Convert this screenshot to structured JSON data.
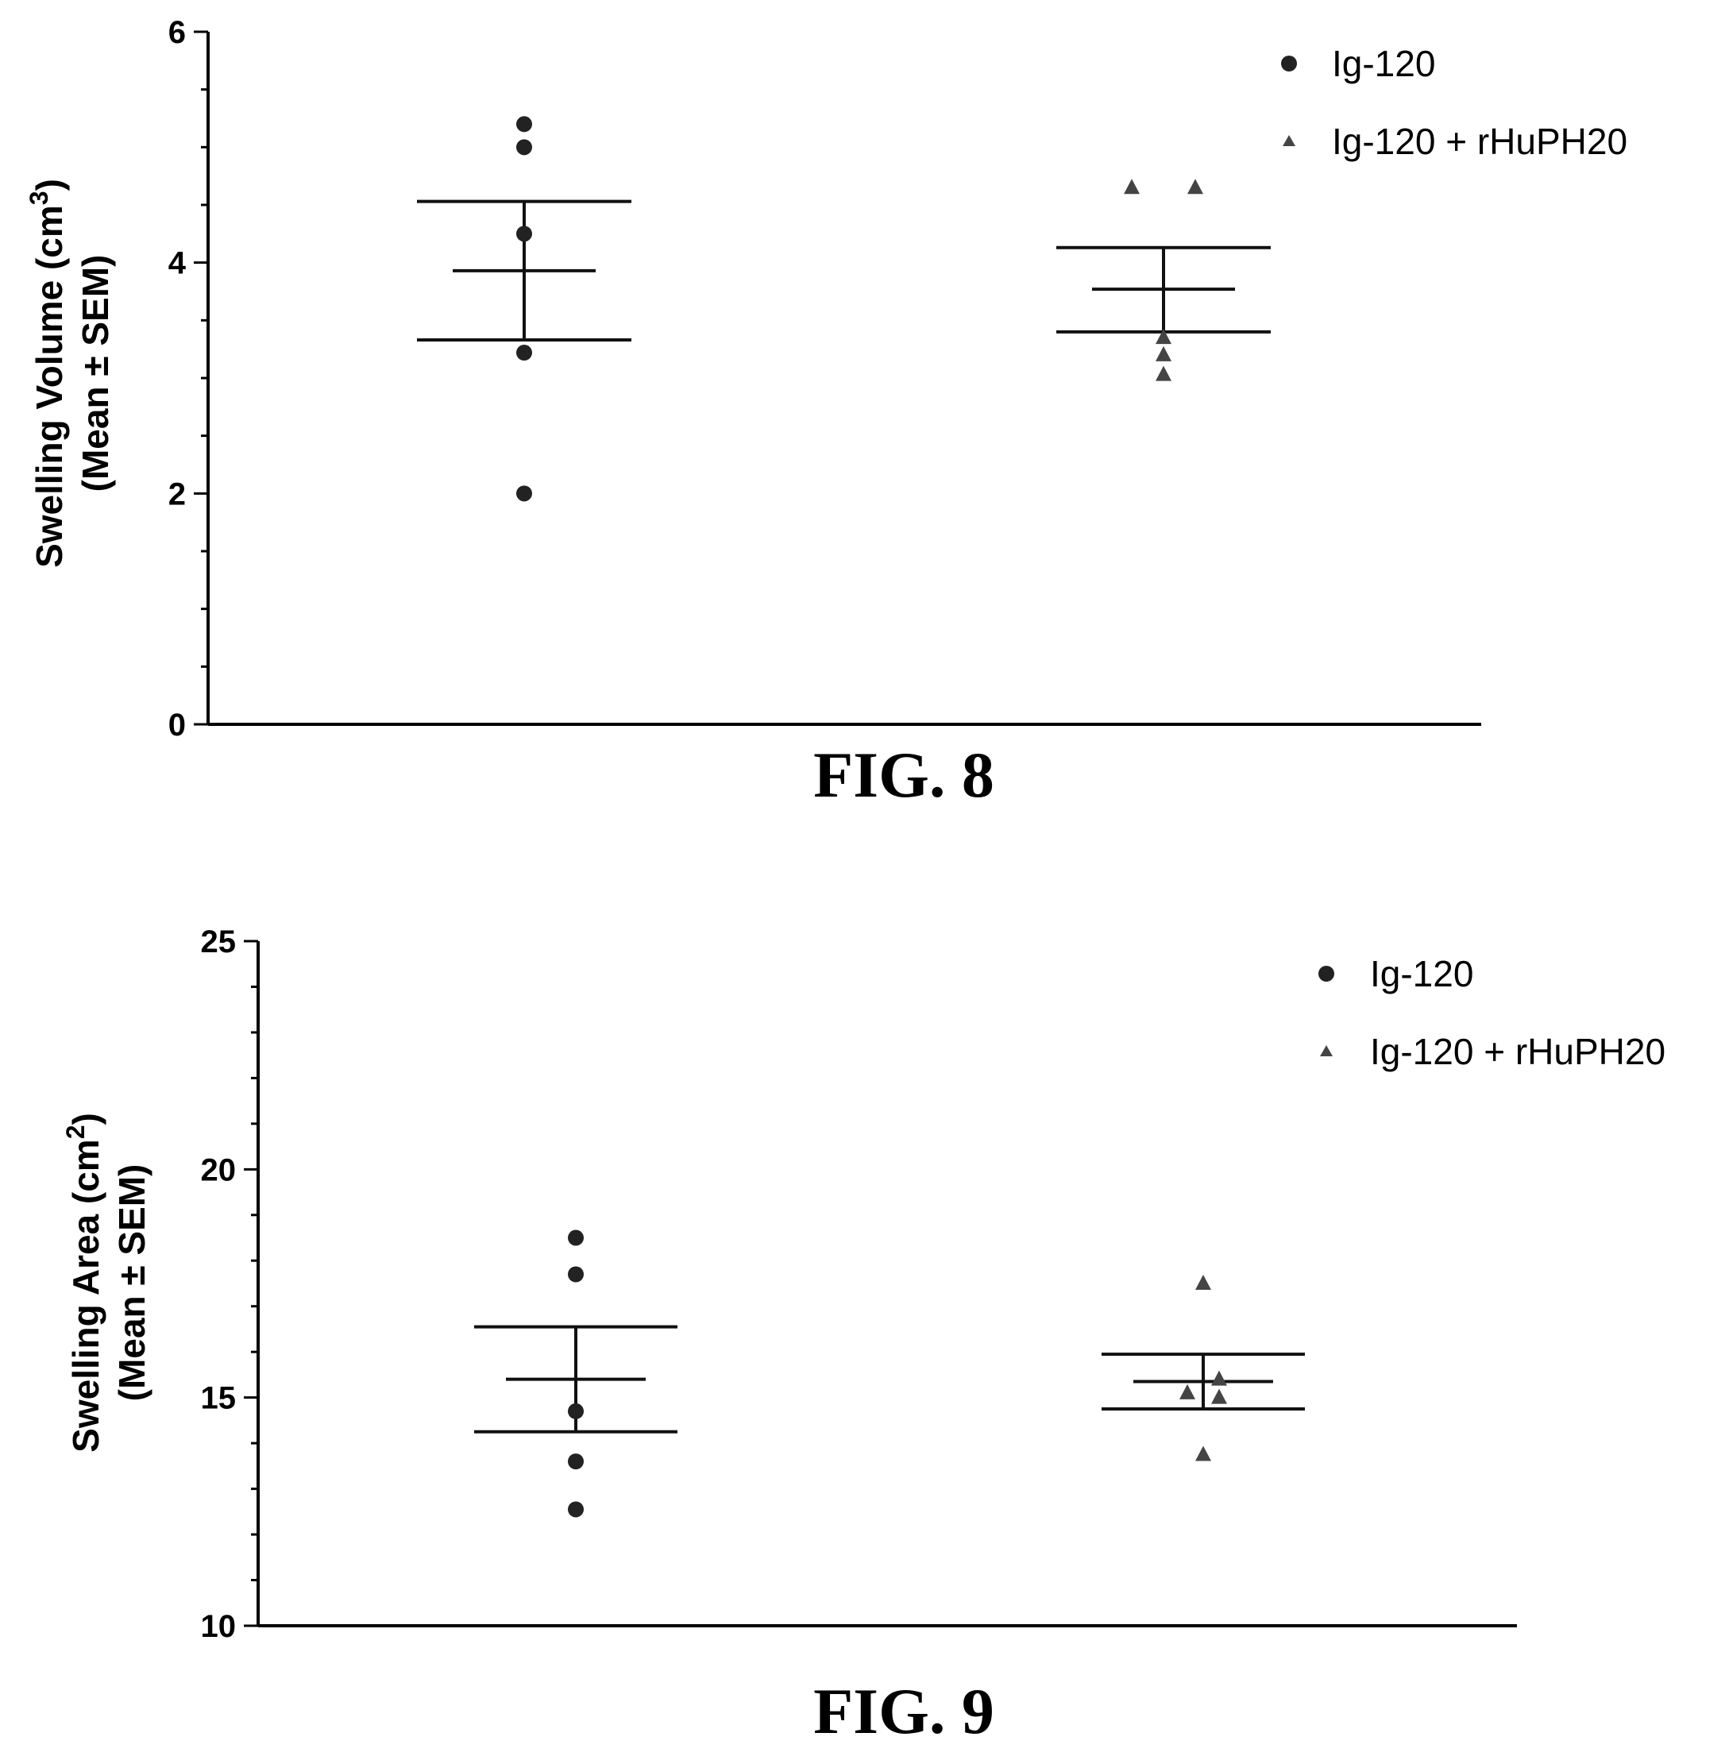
{
  "chart_data": [
    {
      "type": "scatter",
      "title": "",
      "caption": "FIG. 8",
      "ylabel_line1": "Swelling  Volume  (cm",
      "ylabel_sup": "3",
      "ylabel_line1_end": ")",
      "ylabel_line2": "(Mean ± SEM)",
      "xlabel": "",
      "ylim": [
        0,
        6
      ],
      "y_major_ticks": [
        0,
        2,
        4,
        6
      ],
      "y_minor_step": 0.5,
      "legend_position": "top-right",
      "series": [
        {
          "name": "Ig-120",
          "marker": "circle",
          "color": "#222222",
          "values": [
            5.2,
            5.0,
            4.25,
            3.22,
            2.0
          ],
          "mean": 3.93,
          "sem_upper": 4.53,
          "sem_lower": 3.33
        },
        {
          "name": "Ig-120 + rHuPH20",
          "marker": "triangle",
          "color": "#444444",
          "values": [
            4.65,
            4.65,
            3.35,
            3.2,
            3.03
          ],
          "mean": 3.77,
          "sem_upper": 4.13,
          "sem_lower": 3.4
        }
      ]
    },
    {
      "type": "scatter",
      "title": "",
      "caption": "FIG. 9",
      "ylabel_line1": "Swelling  Area  (cm",
      "ylabel_sup": "2",
      "ylabel_line1_end": ")",
      "ylabel_line2": "(Mean ± SEM)",
      "xlabel": "",
      "ylim": [
        10,
        25
      ],
      "y_major_ticks": [
        10,
        15,
        20,
        25
      ],
      "y_minor_step": 1,
      "legend_position": "top-right",
      "series": [
        {
          "name": "Ig-120",
          "marker": "circle",
          "color": "#222222",
          "values": [
            18.5,
            17.7,
            14.7,
            13.6,
            12.55
          ],
          "mean": 15.4,
          "sem_upper": 16.55,
          "sem_lower": 14.25
        },
        {
          "name": "Ig-120 + rHuPH20",
          "marker": "triangle",
          "color": "#444444",
          "values": [
            17.5,
            15.4,
            15.1,
            15.0,
            13.75
          ],
          "mean": 15.35,
          "sem_upper": 15.95,
          "sem_lower": 14.75
        }
      ]
    }
  ]
}
